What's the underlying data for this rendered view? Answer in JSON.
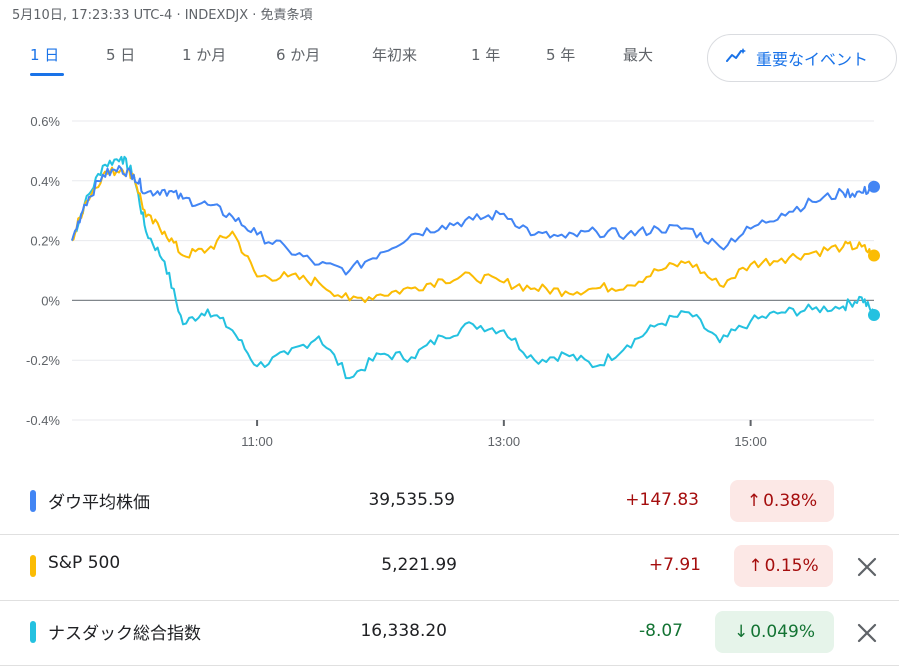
{
  "header": {
    "info": "5月10日, 17:23:33 UTC-4 · INDEXDJX · 免責条項"
  },
  "tabs": [
    {
      "label": "1 日",
      "active": true
    },
    {
      "label": "5 日",
      "active": false
    },
    {
      "label": "1 か月",
      "active": false
    },
    {
      "label": "6 か月",
      "active": false
    },
    {
      "label": "年初来",
      "active": false
    },
    {
      "label": "1 年",
      "active": false
    },
    {
      "label": "5 年",
      "active": false
    },
    {
      "label": "最大",
      "active": false
    }
  ],
  "events_button": {
    "label": "重要なイベント",
    "icon": "sparkline-icon"
  },
  "colors": {
    "dow": "#4285f4",
    "sp500": "#fbbc04",
    "nasdaq": "#24c1e0",
    "up_text": "#a50e0e",
    "up_bg": "#fce8e6",
    "down_text": "#137333",
    "down_bg": "#e6f4ea"
  },
  "chart_data": {
    "type": "line",
    "ylim": [
      -0.4,
      0.6
    ],
    "ytick_labels": [
      "0.6%",
      "0.4%",
      "0.2%",
      "0%",
      "-0.2%",
      "-0.4%"
    ],
    "yticks": [
      0.6,
      0.4,
      0.2,
      0,
      -0.2,
      -0.4
    ],
    "xlim": [
      9.5,
      16.0
    ],
    "xtick_labels": [
      "11:00",
      "13:00",
      "15:00"
    ],
    "xticks": [
      11,
      13,
      15
    ],
    "grid": true,
    "x": [
      9.5,
      9.6,
      9.75,
      9.9,
      10.0,
      10.1,
      10.25,
      10.4,
      10.6,
      10.8,
      11.0,
      11.25,
      11.5,
      11.75,
      12.0,
      12.25,
      12.5,
      12.75,
      13.0,
      13.25,
      13.5,
      13.75,
      14.0,
      14.25,
      14.5,
      14.75,
      15.0,
      15.25,
      15.5,
      15.75,
      15.9,
      16.0
    ],
    "series": [
      {
        "name": "ダウ平均株価",
        "values": [
          0.2,
          0.32,
          0.42,
          0.44,
          0.42,
          0.36,
          0.37,
          0.34,
          0.32,
          0.28,
          0.22,
          0.17,
          0.12,
          0.1,
          0.16,
          0.22,
          0.25,
          0.27,
          0.29,
          0.22,
          0.21,
          0.23,
          0.22,
          0.24,
          0.24,
          0.18,
          0.24,
          0.29,
          0.33,
          0.36,
          0.36,
          0.38
        ]
      },
      {
        "name": "S&P 500",
        "values": [
          0.2,
          0.32,
          0.42,
          0.44,
          0.42,
          0.28,
          0.23,
          0.15,
          0.17,
          0.23,
          0.08,
          0.08,
          0.06,
          0.0,
          0.02,
          0.04,
          0.07,
          0.08,
          0.06,
          0.04,
          0.03,
          0.04,
          0.05,
          0.1,
          0.13,
          0.05,
          0.12,
          0.14,
          0.16,
          0.18,
          0.18,
          0.15
        ]
      },
      {
        "name": "ナスダック総合指数",
        "values": [
          0.2,
          0.32,
          0.45,
          0.48,
          0.42,
          0.23,
          0.13,
          -0.08,
          -0.03,
          -0.1,
          -0.22,
          -0.18,
          -0.12,
          -0.26,
          -0.18,
          -0.19,
          -0.12,
          -0.08,
          -0.1,
          -0.2,
          -0.18,
          -0.22,
          -0.15,
          -0.08,
          -0.04,
          -0.14,
          -0.07,
          -0.04,
          -0.03,
          -0.02,
          0.01,
          -0.049
        ]
      }
    ]
  },
  "table": {
    "rows": [
      {
        "name": "ダウ平均株価",
        "price": "39,535.59",
        "change": "+147.83",
        "pct": "0.38%",
        "arrow": "↑",
        "direction": "up",
        "closable": false
      },
      {
        "name": "S&P 500",
        "price": "5,221.99",
        "change": "+7.91",
        "pct": "0.15%",
        "arrow": "↑",
        "direction": "up",
        "closable": true
      },
      {
        "name": "ナスダック総合指数",
        "price": "16,338.20",
        "change": "-8.07",
        "pct": "0.049%",
        "arrow": "↓",
        "direction": "down",
        "closable": true
      }
    ]
  }
}
